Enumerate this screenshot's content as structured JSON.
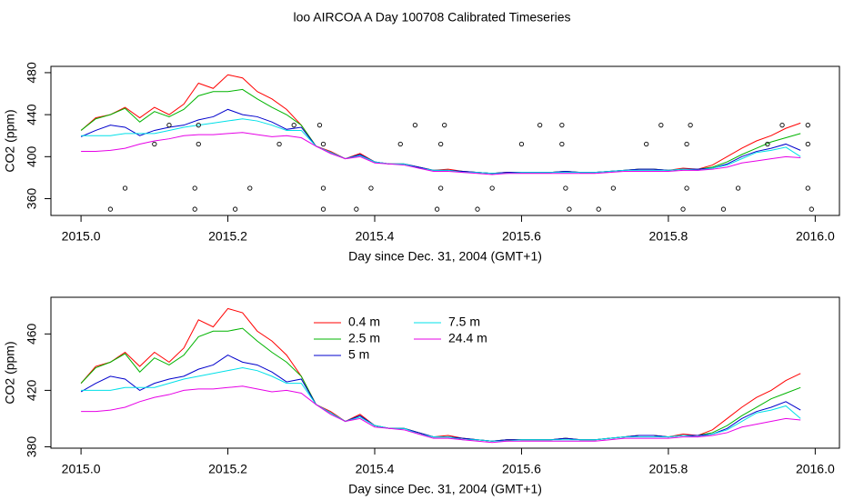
{
  "chart_data": [
    {
      "type": "line",
      "title": "loo AIRCOA A  Day 100708  Calibrated Timeseries",
      "xlabel": "Day since Dec. 31, 2004 (GMT+1)",
      "ylabel": "CO2 (ppm)",
      "xlim": [
        2014.959,
        2016.033
      ],
      "ylim": [
        344,
        486
      ],
      "xticks": [
        {
          "value": 2015,
          "label": "2015.0"
        },
        {
          "value": 2015.2,
          "label": "2015.2"
        },
        {
          "value": 2015.4,
          "label": "2015.4"
        },
        {
          "value": 2015.6,
          "label": "2015.6"
        },
        {
          "value": 2015.8,
          "label": "2015.8"
        },
        {
          "value": 2016,
          "label": "2016.0"
        }
      ],
      "yticks": [
        360,
        400,
        440,
        480
      ],
      "x": [
        2015.0,
        2015.02,
        2015.04,
        2015.06,
        2015.08,
        2015.1,
        2015.12,
        2015.14,
        2015.16,
        2015.18,
        2015.2,
        2015.22,
        2015.24,
        2015.26,
        2015.28,
        2015.3,
        2015.32,
        2015.34,
        2015.36,
        2015.38,
        2015.4,
        2015.42,
        2015.44,
        2015.46,
        2015.48,
        2015.5,
        2015.52,
        2015.54,
        2015.56,
        2015.58,
        2015.6,
        2015.62,
        2015.64,
        2015.66,
        2015.68,
        2015.7,
        2015.72,
        2015.74,
        2015.76,
        2015.78,
        2015.8,
        2015.82,
        2015.84,
        2015.86,
        2015.88,
        2015.9,
        2015.92,
        2015.94,
        2015.96,
        2015.98
      ],
      "series": [
        {
          "color": "#ff0000",
          "values": [
            425,
            437,
            440,
            447,
            437,
            447,
            440,
            450,
            470,
            465,
            478,
            475,
            462,
            455,
            445,
            430,
            410,
            405,
            398,
            403,
            395,
            393,
            393,
            390,
            387,
            388,
            386,
            385,
            384,
            385,
            385,
            385,
            385,
            386,
            385,
            385,
            386,
            387,
            388,
            388,
            387,
            389,
            388,
            392,
            400,
            408,
            415,
            420,
            427,
            432
          ]
        },
        {
          "color": "#00b400",
          "values": [
            425,
            436,
            440,
            446,
            433,
            443,
            438,
            445,
            458,
            462,
            462,
            464,
            455,
            447,
            440,
            430,
            410,
            404,
            398,
            402,
            395,
            393,
            393,
            390,
            387,
            387,
            386,
            385,
            384,
            385,
            385,
            385,
            385,
            386,
            385,
            385,
            386,
            387,
            388,
            388,
            387,
            388,
            388,
            390,
            395,
            402,
            408,
            414,
            418,
            422
          ]
        },
        {
          "color": "#0000cc",
          "values": [
            419,
            425,
            430,
            428,
            420,
            425,
            428,
            430,
            435,
            438,
            445,
            440,
            438,
            433,
            426,
            428,
            410,
            404,
            398,
            402,
            395,
            393,
            393,
            390,
            387,
            387,
            386,
            385,
            384,
            385,
            385,
            385,
            385,
            386,
            385,
            385,
            386,
            387,
            388,
            388,
            387,
            388,
            388,
            389,
            393,
            400,
            405,
            408,
            412,
            406
          ]
        },
        {
          "color": "#00e0e8",
          "values": [
            420,
            420,
            420,
            422,
            422,
            422,
            425,
            428,
            430,
            432,
            434,
            436,
            434,
            430,
            425,
            425,
            410,
            404,
            398,
            401,
            395,
            393,
            393,
            389,
            387,
            387,
            385,
            385,
            384,
            384,
            385,
            385,
            385,
            385,
            385,
            385,
            386,
            387,
            387,
            387,
            387,
            388,
            387,
            389,
            392,
            398,
            404,
            406,
            409,
            400
          ]
        },
        {
          "color": "#e600e6",
          "values": [
            405,
            405,
            406,
            408,
            412,
            415,
            417,
            420,
            421,
            421,
            422,
            423,
            421,
            419,
            420,
            418,
            410,
            403,
            398,
            400,
            394,
            393,
            392,
            389,
            386,
            386,
            385,
            384,
            383,
            384,
            384,
            384,
            384,
            384,
            384,
            384,
            385,
            386,
            386,
            386,
            386,
            387,
            387,
            388,
            390,
            394,
            396,
            398,
            400,
            399
          ]
        }
      ],
      "points": {
        "color": "#000000",
        "x": [
          2015.04,
          2015.06,
          2015.1,
          2015.12,
          2015.155,
          2015.155,
          2015.16,
          2015.16,
          2015.21,
          2015.23,
          2015.27,
          2015.29,
          2015.325,
          2015.33,
          2015.33,
          2015.33,
          2015.375,
          2015.395,
          2015.435,
          2015.455,
          2015.485,
          2015.49,
          2015.49,
          2015.495,
          2015.54,
          2015.56,
          2015.6,
          2015.625,
          2015.655,
          2015.655,
          2015.66,
          2015.665,
          2015.705,
          2015.725,
          2015.77,
          2015.79,
          2015.82,
          2015.825,
          2015.825,
          2015.83,
          2015.875,
          2015.895,
          2015.935,
          2015.955,
          2015.99,
          2015.99,
          2015.99,
          2015.995
        ],
        "values": [
          350,
          370,
          412,
          430,
          350,
          370,
          412,
          430,
          350,
          370,
          412,
          430,
          430,
          412,
          370,
          350,
          350,
          370,
          412,
          430,
          350,
          370,
          412,
          430,
          350,
          370,
          412,
          430,
          430,
          412,
          370,
          350,
          350,
          370,
          412,
          430,
          350,
          370,
          412,
          430,
          350,
          370,
          412,
          430,
          430,
          412,
          370,
          350
        ]
      }
    },
    {
      "type": "line",
      "xlabel": "Day since Dec. 31, 2004 (GMT+1)",
      "ylabel": "CO2 (ppm)",
      "xlim": [
        2014.959,
        2016.033
      ],
      "ylim": [
        379,
        486
      ],
      "xticks": [
        {
          "value": 2015,
          "label": "2015.0"
        },
        {
          "value": 2015.2,
          "label": "2015.2"
        },
        {
          "value": 2015.4,
          "label": "2015.4"
        },
        {
          "value": 2015.6,
          "label": "2015.6"
        },
        {
          "value": 2015.8,
          "label": "2015.8"
        },
        {
          "value": 2016,
          "label": "2016.0"
        }
      ],
      "yticks": [
        380,
        420,
        460
      ],
      "legend": "top",
      "x": [
        2015.0,
        2015.02,
        2015.04,
        2015.06,
        2015.08,
        2015.1,
        2015.12,
        2015.14,
        2015.16,
        2015.18,
        2015.2,
        2015.22,
        2015.24,
        2015.26,
        2015.28,
        2015.3,
        2015.32,
        2015.34,
        2015.36,
        2015.38,
        2015.4,
        2015.42,
        2015.44,
        2015.46,
        2015.48,
        2015.5,
        2015.52,
        2015.54,
        2015.56,
        2015.58,
        2015.6,
        2015.62,
        2015.64,
        2015.66,
        2015.68,
        2015.7,
        2015.72,
        2015.74,
        2015.76,
        2015.78,
        2015.8,
        2015.82,
        2015.84,
        2015.86,
        2015.88,
        2015.9,
        2015.92,
        2015.94,
        2015.96,
        2015.98
      ],
      "series": [
        {
          "name": "0.4 m",
          "color": "#ff0000",
          "values": [
            425,
            437,
            440,
            447,
            437,
            447,
            440,
            450,
            470,
            465,
            478,
            475,
            462,
            455,
            445,
            430,
            410,
            405,
            398,
            403,
            395,
            393,
            393,
            390,
            387,
            388,
            386,
            385,
            384,
            385,
            385,
            385,
            385,
            386,
            385,
            385,
            386,
            387,
            388,
            388,
            387,
            389,
            388,
            392,
            400,
            408,
            415,
            420,
            427,
            432
          ]
        },
        {
          "name": "2.5 m",
          "color": "#00b400",
          "values": [
            425,
            436,
            440,
            446,
            433,
            443,
            438,
            445,
            458,
            462,
            462,
            464,
            455,
            447,
            440,
            430,
            410,
            404,
            398,
            402,
            395,
            393,
            393,
            390,
            387,
            387,
            386,
            385,
            384,
            385,
            385,
            385,
            385,
            386,
            385,
            385,
            386,
            387,
            388,
            388,
            387,
            388,
            388,
            390,
            395,
            402,
            408,
            414,
            418,
            422
          ]
        },
        {
          "name": "5 m",
          "color": "#0000cc",
          "values": [
            419,
            425,
            430,
            428,
            420,
            425,
            428,
            430,
            435,
            438,
            445,
            440,
            438,
            433,
            426,
            428,
            410,
            404,
            398,
            402,
            395,
            393,
            393,
            390,
            387,
            387,
            386,
            385,
            384,
            385,
            385,
            385,
            385,
            386,
            385,
            385,
            386,
            387,
            388,
            388,
            387,
            388,
            388,
            389,
            393,
            400,
            405,
            408,
            412,
            406
          ]
        },
        {
          "name": "7.5 m",
          "color": "#00e0e8",
          "values": [
            420,
            420,
            420,
            422,
            422,
            422,
            425,
            428,
            430,
            432,
            434,
            436,
            434,
            430,
            425,
            425,
            410,
            404,
            398,
            401,
            395,
            393,
            393,
            389,
            387,
            387,
            385,
            385,
            384,
            384,
            385,
            385,
            385,
            385,
            385,
            385,
            386,
            387,
            387,
            387,
            387,
            388,
            387,
            389,
            392,
            398,
            404,
            406,
            409,
            400
          ]
        },
        {
          "name": "24.4 m",
          "color": "#e600e6",
          "values": [
            405,
            405,
            406,
            408,
            412,
            415,
            417,
            420,
            421,
            421,
            422,
            423,
            421,
            419,
            420,
            418,
            410,
            403,
            398,
            400,
            394,
            393,
            392,
            389,
            386,
            386,
            385,
            384,
            383,
            384,
            384,
            384,
            384,
            384,
            384,
            384,
            385,
            386,
            386,
            386,
            386,
            387,
            387,
            388,
            390,
            394,
            396,
            398,
            400,
            399
          ]
        }
      ]
    }
  ]
}
